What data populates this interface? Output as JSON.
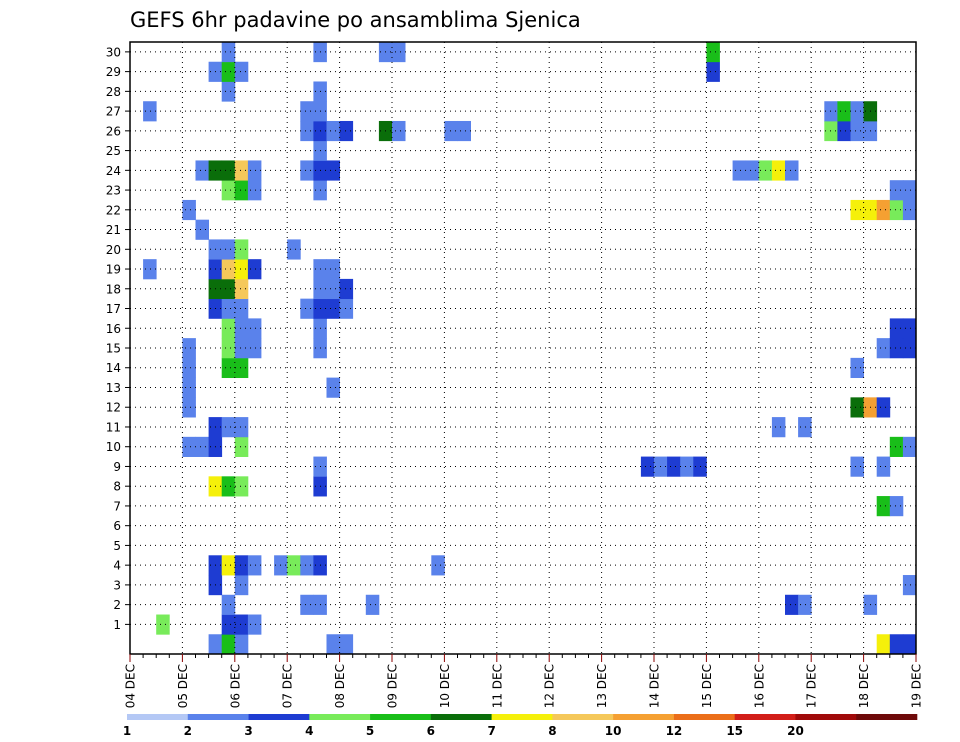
{
  "chart_data": {
    "type": "heatmap",
    "title": "GEFS 6hr padavine po ansamblima Sjenica",
    "xlabel": "",
    "ylabel": "",
    "x_tick_labels": [
      "04 DEC",
      "05 DEC",
      "06 DEC",
      "07 DEC",
      "08 DEC",
      "09 DEC",
      "10 DEC",
      "11 DEC",
      "12 DEC",
      "13 DEC",
      "14 DEC",
      "15 DEC",
      "16 DEC",
      "17 DEC",
      "18 DEC",
      "19 DEC"
    ],
    "y_tick_labels": [
      "1",
      "2",
      "3",
      "4",
      "5",
      "6",
      "7",
      "8",
      "9",
      "10",
      "11",
      "12",
      "13",
      "14",
      "15",
      "16",
      "17",
      "18",
      "19",
      "20",
      "21",
      "22",
      "23",
      "24",
      "25",
      "26",
      "27",
      "28",
      "29",
      "30"
    ],
    "x_steps": 60,
    "y_members": [
      0,
      30
    ],
    "grid": true,
    "colorbar": {
      "levels": [
        "1",
        "2",
        "3",
        "4",
        "5",
        "6",
        "7",
        "8",
        "10",
        "12",
        "15",
        "20"
      ],
      "colors": [
        "#b4c8f5",
        "#5a82eb",
        "#1e3cd2",
        "#78eb5a",
        "#19be19",
        "#0a6e0a",
        "#f5f00a",
        "#f5c85a",
        "#f5a032",
        "#eb6e19",
        "#d21e19",
        "#a00a0a",
        "#6e0a0a"
      ]
    },
    "cells": [
      [
        0,
        6,
        1
      ],
      [
        0,
        7,
        4
      ],
      [
        0,
        8,
        1
      ],
      [
        0,
        15,
        1
      ],
      [
        0,
        16,
        1
      ],
      [
        0,
        57,
        6
      ],
      [
        0,
        58,
        2
      ],
      [
        0,
        59,
        2
      ],
      [
        1,
        7,
        2
      ],
      [
        1,
        8,
        2
      ],
      [
        1,
        9,
        1
      ],
      [
        1,
        2,
        3
      ],
      [
        2,
        7,
        1
      ],
      [
        2,
        13,
        1
      ],
      [
        2,
        14,
        1
      ],
      [
        2,
        18,
        1
      ],
      [
        2,
        50,
        2
      ],
      [
        2,
        51,
        1
      ],
      [
        2,
        56,
        1
      ],
      [
        3,
        6,
        2
      ],
      [
        3,
        8,
        1
      ],
      [
        3,
        59,
        1
      ],
      [
        4,
        6,
        2
      ],
      [
        4,
        7,
        6
      ],
      [
        4,
        8,
        2
      ],
      [
        4,
        9,
        1
      ],
      [
        4,
        11,
        1
      ],
      [
        4,
        12,
        3
      ],
      [
        4,
        13,
        1
      ],
      [
        4,
        14,
        2
      ],
      [
        4,
        23,
        1
      ],
      [
        7,
        57,
        4
      ],
      [
        7,
        58,
        1
      ],
      [
        8,
        6,
        6
      ],
      [
        8,
        7,
        4
      ],
      [
        8,
        8,
        3
      ],
      [
        8,
        14,
        2
      ],
      [
        9,
        14,
        1
      ],
      [
        9,
        39,
        2
      ],
      [
        9,
        40,
        1
      ],
      [
        9,
        41,
        2
      ],
      [
        9,
        42,
        1
      ],
      [
        9,
        43,
        2
      ],
      [
        9,
        55,
        1
      ],
      [
        9,
        57,
        1
      ],
      [
        10,
        4,
        1
      ],
      [
        10,
        5,
        1
      ],
      [
        10,
        6,
        2
      ],
      [
        10,
        8,
        3
      ],
      [
        10,
        58,
        4
      ],
      [
        10,
        59,
        1
      ],
      [
        11,
        6,
        2
      ],
      [
        11,
        7,
        1
      ],
      [
        11,
        8,
        1
      ],
      [
        11,
        49,
        1
      ],
      [
        11,
        51,
        1
      ],
      [
        12,
        4,
        1
      ],
      [
        12,
        55,
        5
      ],
      [
        12,
        56,
        8
      ],
      [
        12,
        57,
        2
      ],
      [
        13,
        4,
        1
      ],
      [
        13,
        15,
        1
      ],
      [
        14,
        4,
        1
      ],
      [
        14,
        7,
        4
      ],
      [
        14,
        8,
        4
      ],
      [
        14,
        55,
        1
      ],
      [
        15,
        4,
        1
      ],
      [
        15,
        7,
        3
      ],
      [
        15,
        8,
        1
      ],
      [
        15,
        9,
        1
      ],
      [
        15,
        14,
        1
      ],
      [
        15,
        57,
        1
      ],
      [
        15,
        58,
        2
      ],
      [
        15,
        59,
        2
      ],
      [
        16,
        7,
        3
      ],
      [
        16,
        8,
        1
      ],
      [
        16,
        9,
        1
      ],
      [
        16,
        14,
        1
      ],
      [
        16,
        58,
        2
      ],
      [
        16,
        59,
        2
      ],
      [
        17,
        6,
        2
      ],
      [
        17,
        7,
        1
      ],
      [
        17,
        8,
        1
      ],
      [
        17,
        13,
        1
      ],
      [
        17,
        14,
        2
      ],
      [
        17,
        15,
        2
      ],
      [
        17,
        16,
        1
      ],
      [
        18,
        6,
        5
      ],
      [
        18,
        7,
        5
      ],
      [
        18,
        8,
        7
      ],
      [
        18,
        14,
        1
      ],
      [
        18,
        15,
        1
      ],
      [
        18,
        16,
        2
      ],
      [
        19,
        1,
        1
      ],
      [
        19,
        6,
        2
      ],
      [
        19,
        7,
        7
      ],
      [
        19,
        8,
        6
      ],
      [
        19,
        9,
        2
      ],
      [
        19,
        14,
        1
      ],
      [
        19,
        15,
        1
      ],
      [
        20,
        6,
        1
      ],
      [
        20,
        7,
        1
      ],
      [
        20,
        8,
        3
      ],
      [
        20,
        12,
        1
      ],
      [
        21,
        5,
        1
      ],
      [
        22,
        4,
        1
      ],
      [
        22,
        55,
        6
      ],
      [
        22,
        56,
        6
      ],
      [
        22,
        57,
        8
      ],
      [
        22,
        58,
        3
      ],
      [
        22,
        59,
        1
      ],
      [
        23,
        7,
        3
      ],
      [
        23,
        8,
        4
      ],
      [
        23,
        9,
        1
      ],
      [
        23,
        14,
        1
      ],
      [
        23,
        58,
        1
      ],
      [
        23,
        59,
        1
      ],
      [
        24,
        5,
        1
      ],
      [
        24,
        6,
        5
      ],
      [
        24,
        7,
        5
      ],
      [
        24,
        8,
        7
      ],
      [
        24,
        9,
        1
      ],
      [
        24,
        13,
        1
      ],
      [
        24,
        14,
        2
      ],
      [
        24,
        15,
        2
      ],
      [
        24,
        46,
        1
      ],
      [
        24,
        47,
        1
      ],
      [
        24,
        48,
        3
      ],
      [
        24,
        49,
        6
      ],
      [
        24,
        50,
        1
      ],
      [
        25,
        14,
        1
      ],
      [
        26,
        13,
        1
      ],
      [
        26,
        14,
        2
      ],
      [
        26,
        15,
        1
      ],
      [
        26,
        16,
        2
      ],
      [
        26,
        19,
        5
      ],
      [
        26,
        20,
        1
      ],
      [
        26,
        24,
        1
      ],
      [
        26,
        25,
        1
      ],
      [
        26,
        53,
        3
      ],
      [
        26,
        54,
        2
      ],
      [
        26,
        55,
        1
      ],
      [
        26,
        56,
        1
      ],
      [
        27,
        1,
        1
      ],
      [
        27,
        13,
        1
      ],
      [
        27,
        14,
        1
      ],
      [
        27,
        53,
        1
      ],
      [
        27,
        54,
        4
      ],
      [
        27,
        55,
        1
      ],
      [
        27,
        56,
        5
      ],
      [
        28,
        7,
        1
      ],
      [
        28,
        14,
        1
      ],
      [
        29,
        6,
        1
      ],
      [
        29,
        7,
        4
      ],
      [
        29,
        8,
        1
      ],
      [
        29,
        44,
        2
      ],
      [
        30,
        7,
        1
      ],
      [
        30,
        14,
        1
      ],
      [
        30,
        19,
        1
      ],
      [
        30,
        20,
        1
      ],
      [
        30,
        44,
        4
      ]
    ]
  }
}
